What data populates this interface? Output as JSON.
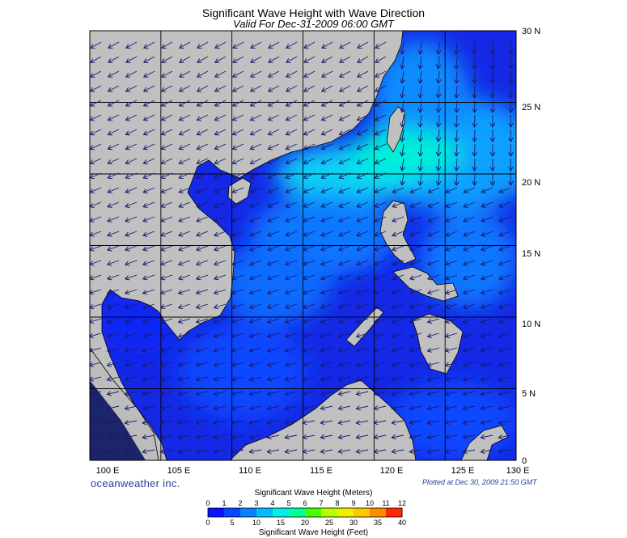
{
  "header": {
    "title": "Significant Wave Height with Wave Direction",
    "subtitle": "Valid For Dec-31-2009 06:00 GMT"
  },
  "map": {
    "lon_range": [
      100,
      130
    ],
    "lat_range": [
      0,
      30
    ],
    "lon_labels": [
      "100 E",
      "105 E",
      "110 E",
      "115 E",
      "120 E",
      "125 E",
      "130 E"
    ],
    "lat_labels": [
      "30 N",
      "25 N",
      "20 N",
      "15 N",
      "10 N",
      "5 N",
      "0"
    ],
    "grid": true,
    "land_color": "#c0c0c0",
    "sea_base_color": "#1428e6",
    "arrow_color": "#1a1a6e"
  },
  "branding": {
    "logo_text": "oceanweather inc.",
    "plotted_at": "Plotted at Dec 30, 2009 21:50 GMT"
  },
  "scale": {
    "meters_title": "Significant Wave Height (Meters)",
    "feet_title": "Significant Wave Height (Feet)",
    "meters_ticks": [
      "0",
      "1",
      "2",
      "3",
      "4",
      "5",
      "6",
      "7",
      "8",
      "9",
      "10",
      "11",
      "12"
    ],
    "feet_ticks": [
      "0",
      "5",
      "10",
      "15",
      "20",
      "25",
      "30",
      "35",
      "40"
    ],
    "colors": [
      "#0a14ff",
      "#0a46ff",
      "#0a82ff",
      "#00beff",
      "#00f0e6",
      "#00ff96",
      "#46ff00",
      "#b4ff00",
      "#f0f000",
      "#ffc800",
      "#ff8c00",
      "#ff2800"
    ]
  }
}
